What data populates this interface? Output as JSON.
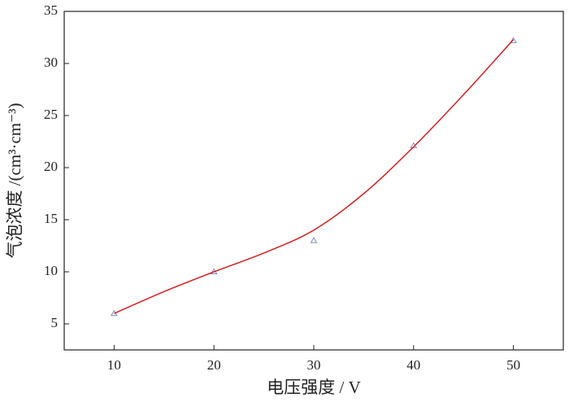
{
  "chart_data": {
    "type": "scatter",
    "xlabel": "电压强度 / V",
    "ylabel": "气泡浓度 /(cm³·cm⁻³)",
    "xlim": [
      5,
      55
    ],
    "xticks": [
      10,
      20,
      30,
      40,
      50
    ],
    "ylim": [
      2.5,
      35
    ],
    "yticks": [
      5,
      10,
      15,
      20,
      25,
      30,
      35
    ],
    "series": [
      {
        "marker": "triangle",
        "color": "#7a8cc4",
        "x": [
          10,
          20,
          30,
          40,
          50
        ],
        "values": [
          6,
          10,
          13,
          22.1,
          32.2
        ]
      },
      {
        "line": true,
        "color": "#d42020",
        "x": [
          10,
          15,
          20,
          25,
          30,
          35,
          40,
          45,
          50
        ],
        "values": [
          6,
          8.1,
          10,
          11.8,
          14,
          17.5,
          22,
          27,
          32.3
        ]
      }
    ]
  }
}
